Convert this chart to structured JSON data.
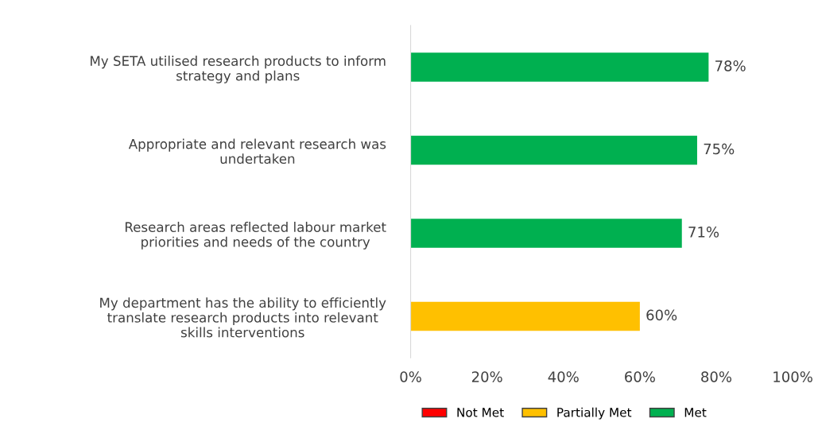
{
  "chart_data": {
    "type": "bar",
    "orientation": "horizontal",
    "categories": [
      "My SETA utilised research products to inform strategy and plans",
      "Appropriate and relevant research was undertaken",
      "Research areas reflected labour market priorities and needs of the country",
      "My department has the ability to efficiently translate research products into relevant skills interventions"
    ],
    "series": [
      {
        "name": "Not Met",
        "color": "#ff0000",
        "values": [
          null,
          null,
          null,
          null
        ]
      },
      {
        "name": "Partially Met",
        "color": "#ffc000",
        "values": [
          null,
          null,
          null,
          60
        ],
        "value_labels": [
          null,
          null,
          null,
          "60%"
        ]
      },
      {
        "name": "Met",
        "color": "#00b050",
        "values": [
          78,
          75,
          71,
          null
        ],
        "value_labels": [
          "78%",
          "75%",
          "71%",
          null
        ]
      }
    ],
    "xlim": [
      0,
      100
    ],
    "xticks": [
      {
        "value": 0,
        "label": "0%"
      },
      {
        "value": 20,
        "label": "20%"
      },
      {
        "value": 40,
        "label": "40%"
      },
      {
        "value": 60,
        "label": "60%"
      },
      {
        "value": 80,
        "label": "80%"
      },
      {
        "value": 100,
        "label": "100%"
      }
    ],
    "grid": false,
    "legend": "bottom"
  }
}
